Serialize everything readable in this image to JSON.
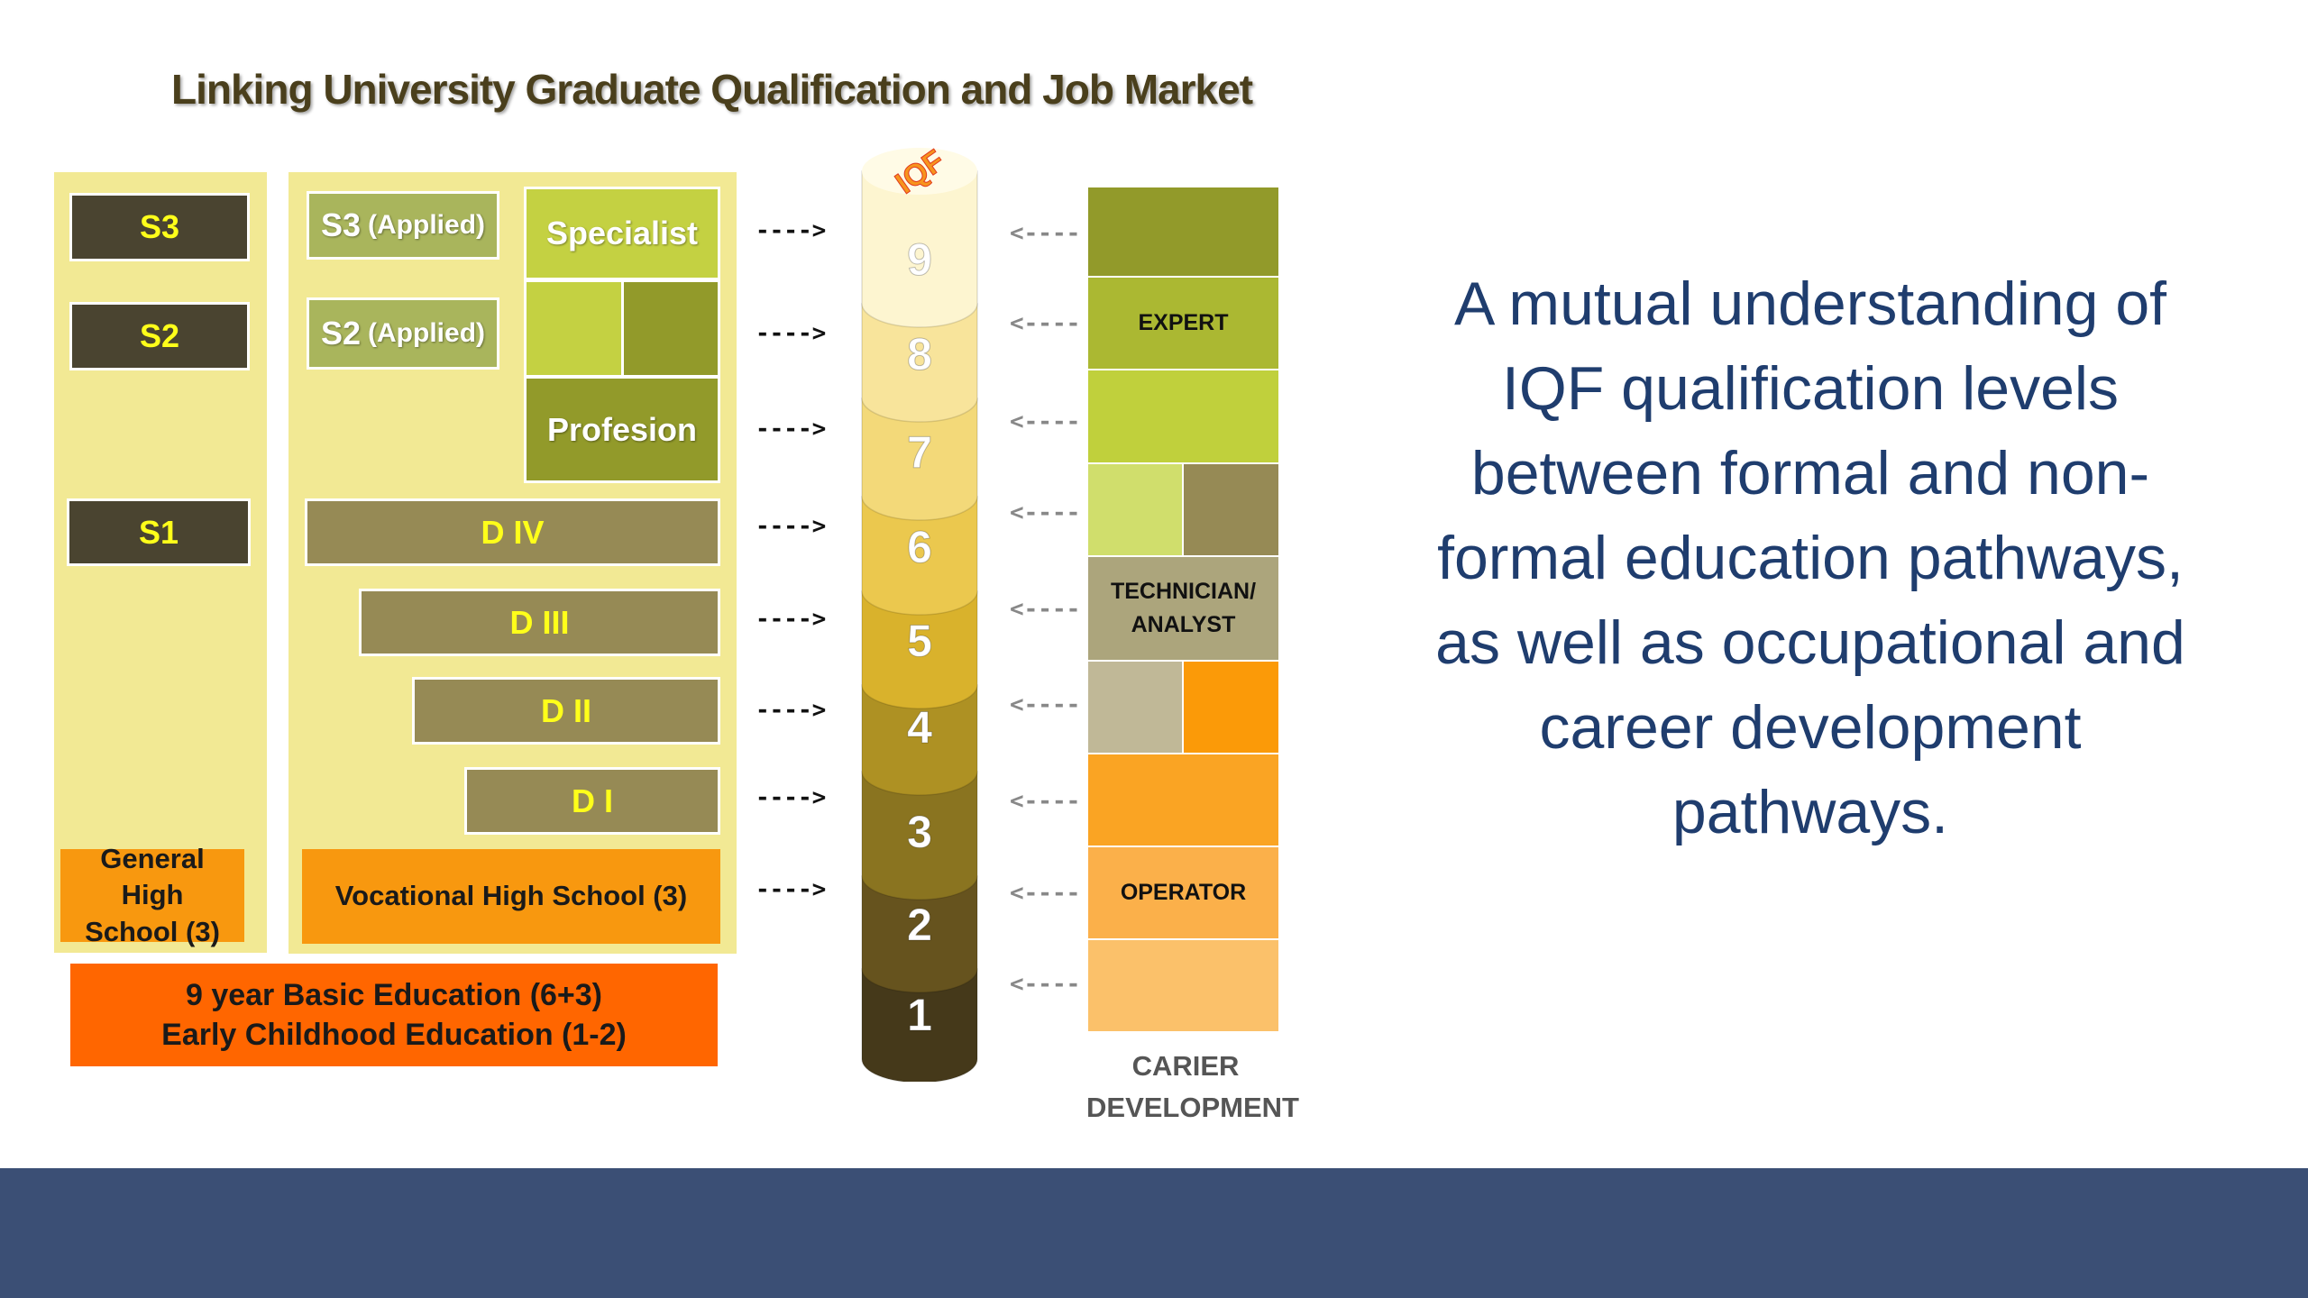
{
  "title": "Linking University Graduate Qualification and Job Market",
  "general": {
    "s3": "S3",
    "s2": "S2",
    "s1": "S1",
    "high_school": "General High School (3)"
  },
  "vocational": {
    "s3_applied": "S3",
    "s2_applied": "S2",
    "applied": "(Applied)",
    "specialist": "Specialist",
    "profesion": "Profesion",
    "d4": "D IV",
    "d3": "D III",
    "d2": "D II",
    "d1": "D I",
    "high_school": "Vocational High School (3)"
  },
  "basic": {
    "line1": "9 year Basic Education (6+3)",
    "line2": "Early Childhood Education (1-2)"
  },
  "iqf": {
    "label": "IQF",
    "levels": [
      "1",
      "2",
      "3",
      "4",
      "5",
      "6",
      "7",
      "8",
      "9"
    ],
    "colors": [
      "#45391a",
      "#66531e",
      "#8a7420",
      "#ae9123",
      "#d9b22c",
      "#ebc84e",
      "#f3d979",
      "#f8e49b",
      "#fdf5d0"
    ]
  },
  "career": {
    "expert": "EXPERT",
    "technician": "TECHNICIAN/ ANALYST",
    "operator": "OPERATOR",
    "caption_line1": "CARIER",
    "caption_line2": "DEVELOPMENT"
  },
  "statement": "A mutual understanding of IQF qualification levels between formal and non-formal education pathways, as well as occupational and career development pathways."
}
